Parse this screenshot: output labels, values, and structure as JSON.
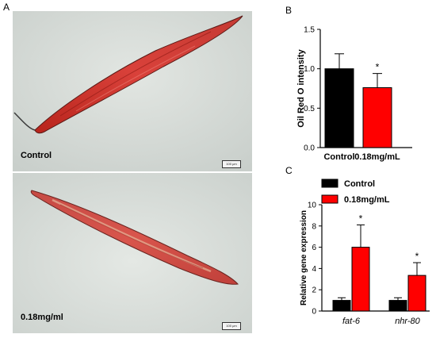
{
  "panels": {
    "a": {
      "letter": "A",
      "top_label": "Control",
      "bottom_label": "0.18mg/ml",
      "scalebar_text": "100 μm"
    },
    "b": {
      "letter": "B"
    },
    "c": {
      "letter": "C"
    }
  },
  "chart_data": [
    {
      "type": "bar",
      "panel": "B",
      "categories": [
        "Control",
        "0.18mg/mL"
      ],
      "values": [
        1.0,
        0.76
      ],
      "errors": [
        0.19,
        0.18
      ],
      "significance": [
        "",
        "*"
      ],
      "colors": [
        "#000000",
        "#ff0000"
      ],
      "ylabel": "Oil Red O intensity",
      "xlabel": "",
      "ylim": [
        0,
        1.5
      ],
      "yticks": [
        "0.0",
        "0.5",
        "1.0",
        "1.5"
      ],
      "grid": false
    },
    {
      "type": "bar",
      "panel": "C",
      "categories": [
        "fat-6",
        "nhr-80"
      ],
      "series": [
        {
          "name": "Control",
          "color": "#000000",
          "values": [
            1.0,
            1.0
          ],
          "errors": [
            0.25,
            0.25
          ],
          "significance": [
            "",
            ""
          ]
        },
        {
          "name": "0.18mg/mL",
          "color": "#ff0000",
          "values": [
            6.0,
            3.35
          ],
          "errors": [
            2.1,
            1.2
          ],
          "significance": [
            "*",
            "*"
          ]
        }
      ],
      "ylabel": "Relative gene expression",
      "xlabel": "",
      "ylim": [
        0,
        10
      ],
      "yticks": [
        "0",
        "2",
        "4",
        "6",
        "8",
        "10"
      ],
      "legend": "top-left",
      "grid": false
    }
  ]
}
